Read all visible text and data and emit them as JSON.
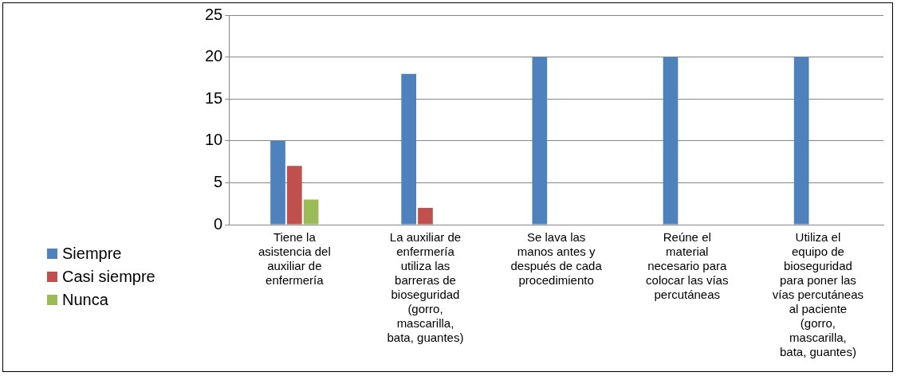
{
  "chart_data": {
    "type": "bar",
    "categories": [
      "Tiene la asistencia del auxiliar de enfermería",
      "La auxiliar de enfermería utiliza las barreras de bioseguridad (gorro, mascarilla, bata, guantes)",
      "Se lava las manos antes y después de cada procedimiento",
      "Reúne el material necesario para colocar las vías percutáneas",
      "Utiliza el equipo de bioseguridad para poner las vías percutáneas al paciente (gorro, mascarilla, bata, guantes)"
    ],
    "series": [
      {
        "name": "Siempre",
        "color": "#4f81bd",
        "values": [
          10,
          18,
          20,
          20,
          20
        ]
      },
      {
        "name": "Casi siempre",
        "color": "#c0504d",
        "values": [
          7,
          2,
          0,
          0,
          0
        ]
      },
      {
        "name": "Nunca",
        "color": "#9bbb59",
        "values": [
          3,
          0,
          0,
          0,
          0
        ]
      }
    ],
    "ylim": [
      0,
      25
    ],
    "yticks": [
      0,
      5,
      10,
      15,
      20,
      25
    ],
    "grid": "y",
    "legend": "left"
  }
}
